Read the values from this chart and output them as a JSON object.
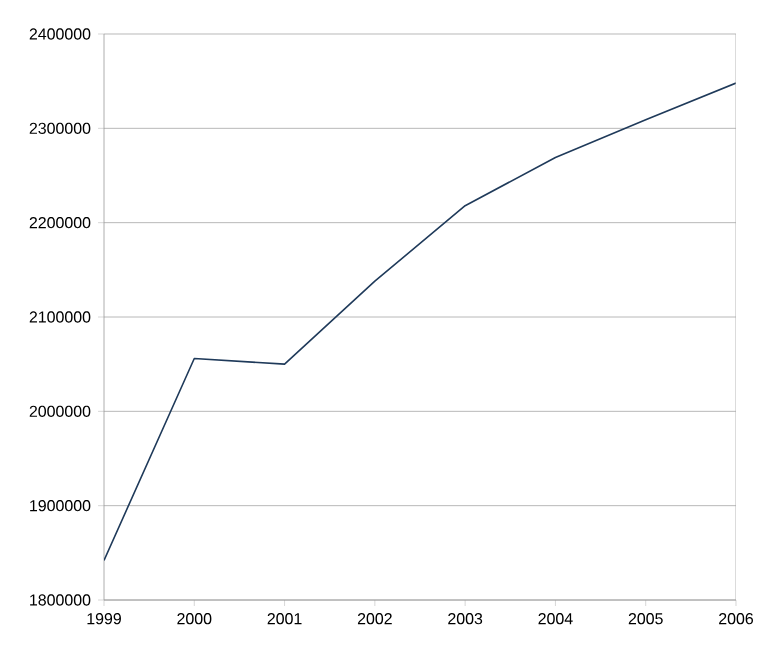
{
  "chart_data": {
    "type": "line",
    "x": [
      1999,
      2000,
      2001,
      2002,
      2003,
      2004,
      2005,
      2006
    ],
    "series": [
      {
        "color": "#1f3a5a",
        "values": [
          1842000,
          2056000,
          2050000,
          2138000,
          2218000,
          2269000,
          2309000,
          2348000
        ]
      }
    ],
    "xlim": [
      1999,
      2006
    ],
    "xticks": [
      1999,
      2000,
      2001,
      2002,
      2003,
      2004,
      2005,
      2006
    ],
    "ylim": [
      1800000,
      2400000
    ],
    "yticks": [
      1800000,
      1900000,
      2000000,
      2100000,
      2200000,
      2300000,
      2400000
    ],
    "grid": "y",
    "marker": "none",
    "line_style": "solid"
  }
}
